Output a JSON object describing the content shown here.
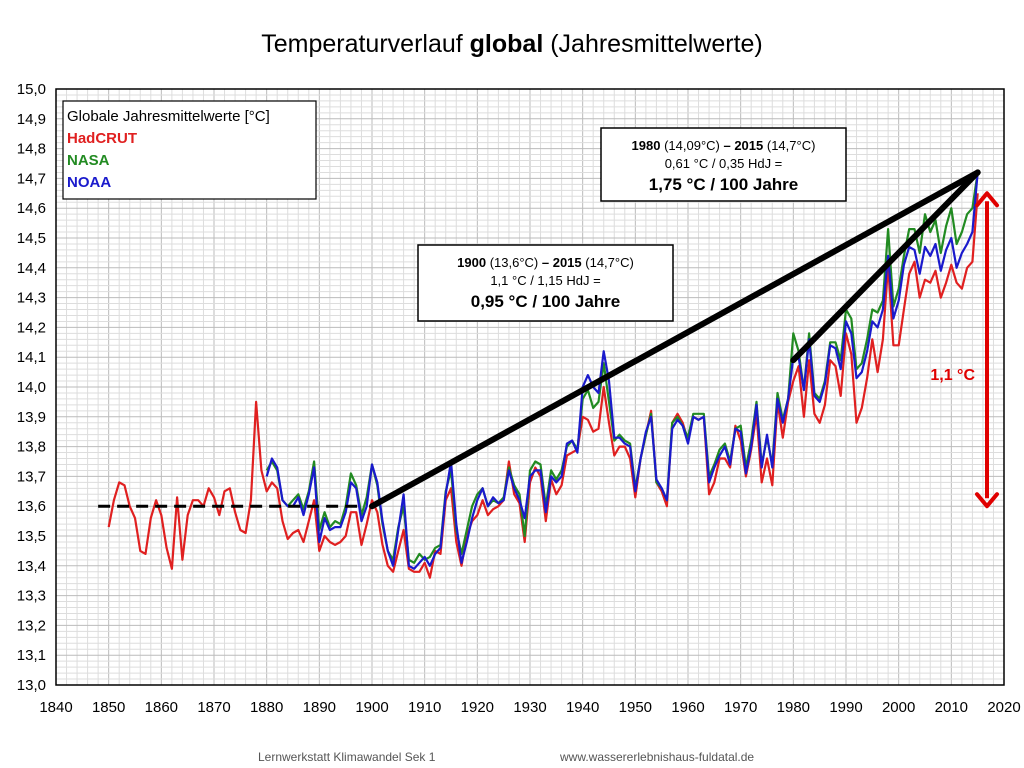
{
  "title": {
    "prefix": "Temperaturverlauf ",
    "bold": "global",
    "suffix": " (Jahresmittelwerte)"
  },
  "footer": {
    "left": "Lernwerkstatt Klimawandel Sek 1",
    "right": "www.wassererlebnishaus-fuldatal.de"
  },
  "chart_data": {
    "type": "line",
    "title": "Temperaturverlauf global (Jahresmittelwerte)",
    "xlim": [
      1840,
      2020
    ],
    "ylim": [
      13.0,
      15.0
    ],
    "x_ticks": [
      1840,
      1850,
      1860,
      1870,
      1880,
      1890,
      1900,
      1910,
      1920,
      1930,
      1940,
      1950,
      1960,
      1970,
      1980,
      1990,
      2000,
      2010,
      2020
    ],
    "y_ticks": [
      "13,0",
      "13,1",
      "13,2",
      "13,3",
      "13,4",
      "13,5",
      "13,6",
      "13,7",
      "13,8",
      "13,9",
      "14,0",
      "14,1",
      "14,2",
      "14,3",
      "14,4",
      "14,5",
      "14,6",
      "14,7",
      "14,8",
      "14,9",
      "15,0"
    ],
    "grid": true,
    "legend": {
      "title": "Globale Jahresmittelwerte [°C]",
      "placement": "top-left",
      "entries": [
        {
          "name": "HadCRUT",
          "color": "#e02020"
        },
        {
          "name": "NASA",
          "color": "#228b22"
        },
        {
          "name": "NOAA",
          "color": "#1a1acc"
        }
      ]
    },
    "series": [
      {
        "name": "HadCRUT",
        "color": "#e02020",
        "x": [
          1850,
          1851,
          1852,
          1853,
          1854,
          1855,
          1856,
          1857,
          1858,
          1859,
          1860,
          1861,
          1862,
          1863,
          1864,
          1865,
          1866,
          1867,
          1868,
          1869,
          1870,
          1871,
          1872,
          1873,
          1874,
          1875,
          1876,
          1877,
          1878,
          1879,
          1880,
          1881,
          1882,
          1883,
          1884,
          1885,
          1886,
          1887,
          1888,
          1889,
          1890,
          1891,
          1892,
          1893,
          1894,
          1895,
          1896,
          1897,
          1898,
          1899,
          1900,
          1901,
          1902,
          1903,
          1904,
          1905,
          1906,
          1907,
          1908,
          1909,
          1910,
          1911,
          1912,
          1913,
          1914,
          1915,
          1916,
          1917,
          1918,
          1919,
          1920,
          1921,
          1922,
          1923,
          1924,
          1925,
          1926,
          1927,
          1928,
          1929,
          1930,
          1931,
          1932,
          1933,
          1934,
          1935,
          1936,
          1937,
          1938,
          1939,
          1940,
          1941,
          1942,
          1943,
          1944,
          1945,
          1946,
          1947,
          1948,
          1949,
          1950,
          1951,
          1952,
          1953,
          1954,
          1955,
          1956,
          1957,
          1958,
          1959,
          1960,
          1961,
          1962,
          1963,
          1964,
          1965,
          1966,
          1967,
          1968,
          1969,
          1970,
          1971,
          1972,
          1973,
          1974,
          1975,
          1976,
          1977,
          1978,
          1979,
          1980,
          1981,
          1982,
          1983,
          1984,
          1985,
          1986,
          1987,
          1988,
          1989,
          1990,
          1991,
          1992,
          1993,
          1994,
          1995,
          1996,
          1997,
          1998,
          1999,
          2000,
          2001,
          2002,
          2003,
          2004,
          2005,
          2006,
          2007,
          2008,
          2009,
          2010,
          2011,
          2012,
          2013,
          2014,
          2015
        ],
        "y": [
          13.53,
          13.62,
          13.68,
          13.67,
          13.6,
          13.56,
          13.45,
          13.44,
          13.56,
          13.62,
          13.57,
          13.46,
          13.39,
          13.63,
          13.42,
          13.57,
          13.62,
          13.62,
          13.6,
          13.66,
          13.63,
          13.57,
          13.65,
          13.66,
          13.58,
          13.52,
          13.51,
          13.62,
          13.95,
          13.72,
          13.65,
          13.68,
          13.66,
          13.55,
          13.49,
          13.51,
          13.52,
          13.48,
          13.55,
          13.62,
          13.45,
          13.5,
          13.48,
          13.47,
          13.48,
          13.5,
          13.58,
          13.58,
          13.47,
          13.54,
          13.62,
          13.58,
          13.47,
          13.4,
          13.38,
          13.45,
          13.52,
          13.39,
          13.38,
          13.38,
          13.41,
          13.36,
          13.45,
          13.44,
          13.62,
          13.66,
          13.48,
          13.4,
          13.5,
          13.55,
          13.57,
          13.62,
          13.57,
          13.59,
          13.6,
          13.62,
          13.75,
          13.64,
          13.61,
          13.48,
          13.68,
          13.73,
          13.7,
          13.55,
          13.69,
          13.64,
          13.67,
          13.77,
          13.78,
          13.79,
          13.9,
          13.89,
          13.85,
          13.86,
          14.0,
          13.88,
          13.77,
          13.8,
          13.8,
          13.76,
          13.63,
          13.76,
          13.84,
          13.92,
          13.68,
          13.65,
          13.6,
          13.88,
          13.91,
          13.88,
          13.82,
          13.9,
          13.89,
          13.9,
          13.64,
          13.68,
          13.76,
          13.76,
          13.73,
          13.87,
          13.82,
          13.7,
          13.79,
          13.91,
          13.68,
          13.76,
          13.67,
          13.95,
          13.83,
          13.95,
          14.02,
          14.07,
          13.9,
          14.09,
          13.91,
          13.88,
          13.94,
          14.09,
          14.07,
          13.97,
          14.18,
          14.11,
          13.88,
          13.93,
          14.03,
          14.16,
          14.05,
          14.16,
          14.41,
          14.14,
          14.14,
          14.26,
          14.38,
          14.42,
          14.3,
          14.36,
          14.35,
          14.39,
          14.3,
          14.35,
          14.41,
          14.35,
          14.33,
          14.4,
          14.42,
          14.65
        ]
      },
      {
        "name": "NASA",
        "color": "#228b22",
        "x": [
          1880,
          1881,
          1882,
          1883,
          1884,
          1885,
          1886,
          1887,
          1888,
          1889,
          1890,
          1891,
          1892,
          1893,
          1894,
          1895,
          1896,
          1897,
          1898,
          1899,
          1900,
          1901,
          1902,
          1903,
          1904,
          1905,
          1906,
          1907,
          1908,
          1909,
          1910,
          1911,
          1912,
          1913,
          1914,
          1915,
          1916,
          1917,
          1918,
          1919,
          1920,
          1921,
          1922,
          1923,
          1924,
          1925,
          1926,
          1927,
          1928,
          1929,
          1930,
          1931,
          1932,
          1933,
          1934,
          1935,
          1936,
          1937,
          1938,
          1939,
          1940,
          1941,
          1942,
          1943,
          1944,
          1945,
          1946,
          1947,
          1948,
          1949,
          1950,
          1951,
          1952,
          1953,
          1954,
          1955,
          1956,
          1957,
          1958,
          1959,
          1960,
          1961,
          1962,
          1963,
          1964,
          1965,
          1966,
          1967,
          1968,
          1969,
          1970,
          1971,
          1972,
          1973,
          1974,
          1975,
          1976,
          1977,
          1978,
          1979,
          1980,
          1981,
          1982,
          1983,
          1984,
          1985,
          1986,
          1987,
          1988,
          1989,
          1990,
          1991,
          1992,
          1993,
          1994,
          1995,
          1996,
          1997,
          1998,
          1999,
          2000,
          2001,
          2002,
          2003,
          2004,
          2005,
          2006,
          2007,
          2008,
          2009,
          2010,
          2011,
          2012,
          2013,
          2014,
          2015
        ],
        "y": [
          13.72,
          13.75,
          13.72,
          13.62,
          13.6,
          13.62,
          13.64,
          13.59,
          13.65,
          13.75,
          13.52,
          13.58,
          13.53,
          13.55,
          13.54,
          13.6,
          13.71,
          13.67,
          13.57,
          13.63,
          13.74,
          13.67,
          13.54,
          13.45,
          13.42,
          13.53,
          13.6,
          13.42,
          13.41,
          13.44,
          13.42,
          13.43,
          13.46,
          13.47,
          13.65,
          13.72,
          13.52,
          13.44,
          13.52,
          13.6,
          13.64,
          13.66,
          13.6,
          13.62,
          13.61,
          13.63,
          13.73,
          13.67,
          13.64,
          13.5,
          13.72,
          13.75,
          13.74,
          13.6,
          13.72,
          13.69,
          13.72,
          13.8,
          13.82,
          13.79,
          13.96,
          13.99,
          13.93,
          13.95,
          14.08,
          13.95,
          13.82,
          13.84,
          13.82,
          13.81,
          13.66,
          13.76,
          13.84,
          13.91,
          13.68,
          13.66,
          13.62,
          13.88,
          13.9,
          13.87,
          13.83,
          13.91,
          13.91,
          13.91,
          13.7,
          13.74,
          13.79,
          13.81,
          13.75,
          13.86,
          13.87,
          13.73,
          13.82,
          13.95,
          13.74,
          13.83,
          13.74,
          13.98,
          13.89,
          13.96,
          14.18,
          14.12,
          13.99,
          14.18,
          13.98,
          13.96,
          14.02,
          14.15,
          14.15,
          14.09,
          14.26,
          14.23,
          14.06,
          14.08,
          14.16,
          14.26,
          14.25,
          14.29,
          14.53,
          14.27,
          14.33,
          14.44,
          14.53,
          14.53,
          14.45,
          14.58,
          14.52,
          14.56,
          14.45,
          14.54,
          14.6,
          14.48,
          14.52,
          14.58,
          14.6,
          14.72
        ]
      },
      {
        "name": "NOAA",
        "color": "#1a1acc",
        "x": [
          1880,
          1881,
          1882,
          1883,
          1884,
          1885,
          1886,
          1887,
          1888,
          1889,
          1890,
          1891,
          1892,
          1893,
          1894,
          1895,
          1896,
          1897,
          1898,
          1899,
          1900,
          1901,
          1902,
          1903,
          1904,
          1905,
          1906,
          1907,
          1908,
          1909,
          1910,
          1911,
          1912,
          1913,
          1914,
          1915,
          1916,
          1917,
          1918,
          1919,
          1920,
          1921,
          1922,
          1923,
          1924,
          1925,
          1926,
          1927,
          1928,
          1929,
          1930,
          1931,
          1932,
          1933,
          1934,
          1935,
          1936,
          1937,
          1938,
          1939,
          1940,
          1941,
          1942,
          1943,
          1944,
          1945,
          1946,
          1947,
          1948,
          1949,
          1950,
          1951,
          1952,
          1953,
          1954,
          1955,
          1956,
          1957,
          1958,
          1959,
          1960,
          1961,
          1962,
          1963,
          1964,
          1965,
          1966,
          1967,
          1968,
          1969,
          1970,
          1971,
          1972,
          1973,
          1974,
          1975,
          1976,
          1977,
          1978,
          1979,
          1980,
          1981,
          1982,
          1983,
          1984,
          1985,
          1986,
          1987,
          1988,
          1989,
          1990,
          1991,
          1992,
          1993,
          1994,
          1995,
          1996,
          1997,
          1998,
          1999,
          2000,
          2001,
          2002,
          2003,
          2004,
          2005,
          2006,
          2007,
          2008,
          2009,
          2010,
          2011,
          2012,
          2013,
          2014,
          2015
        ],
        "y": [
          13.7,
          13.76,
          13.73,
          13.62,
          13.6,
          13.6,
          13.63,
          13.57,
          13.64,
          13.73,
          13.48,
          13.56,
          13.52,
          13.53,
          13.53,
          13.58,
          13.68,
          13.66,
          13.55,
          13.6,
          13.74,
          13.68,
          13.55,
          13.45,
          13.4,
          13.52,
          13.64,
          13.4,
          13.39,
          13.41,
          13.43,
          13.4,
          13.44,
          13.46,
          13.64,
          13.75,
          13.54,
          13.41,
          13.48,
          13.56,
          13.62,
          13.66,
          13.6,
          13.63,
          13.61,
          13.62,
          13.72,
          13.66,
          13.62,
          13.56,
          13.7,
          13.72,
          13.72,
          13.58,
          13.7,
          13.68,
          13.7,
          13.81,
          13.82,
          13.78,
          14.0,
          14.04,
          14.0,
          13.98,
          14.12,
          14.02,
          13.83,
          13.83,
          13.81,
          13.8,
          13.65,
          13.76,
          13.85,
          13.9,
          13.69,
          13.66,
          13.62,
          13.86,
          13.89,
          13.87,
          13.81,
          13.9,
          13.89,
          13.9,
          13.68,
          13.73,
          13.77,
          13.8,
          13.74,
          13.86,
          13.85,
          13.71,
          13.8,
          13.94,
          13.73,
          13.84,
          13.73,
          13.96,
          13.88,
          13.96,
          14.1,
          14.1,
          13.99,
          14.16,
          13.97,
          13.95,
          14.01,
          14.14,
          14.13,
          14.06,
          14.22,
          14.18,
          14.03,
          14.05,
          14.12,
          14.22,
          14.2,
          14.26,
          14.44,
          14.23,
          14.29,
          14.41,
          14.47,
          14.46,
          14.38,
          14.47,
          14.44,
          14.48,
          14.39,
          14.46,
          14.5,
          14.4,
          14.45,
          14.48,
          14.52,
          14.72
        ]
      }
    ],
    "annotations": {
      "baseline": {
        "x": [
          1848,
          1898
        ],
        "y": 13.6,
        "style": "dashed"
      },
      "trend_long": {
        "x": [
          1900,
          2015
        ],
        "y": [
          13.6,
          14.72
        ]
      },
      "trend_short": {
        "x": [
          1980,
          2015
        ],
        "y": [
          14.09,
          14.72
        ]
      },
      "arrow": {
        "x": 2015,
        "y": [
          13.6,
          14.65
        ]
      },
      "arrow_label": "1,1 °C",
      "box1": {
        "line1_bold": "1980",
        "line1_a": " (14,09°C) ",
        "line1_dash": "–",
        "line1_bold2": " 2015",
        "line1_b": " (14,7°C)",
        "line2": "0,61 °C / 0,35 HdJ =",
        "line3": "1,75 °C / 100 Jahre"
      },
      "box2": {
        "line1_bold": "1900",
        "line1_a": " (13,6°C) ",
        "line1_dash": "–",
        "line1_bold2": " 2015",
        "line1_b": " (14,7°C)",
        "line2": "1,1 °C / 1,15 HdJ =",
        "line3": "0,95 °C / 100 Jahre"
      }
    }
  }
}
